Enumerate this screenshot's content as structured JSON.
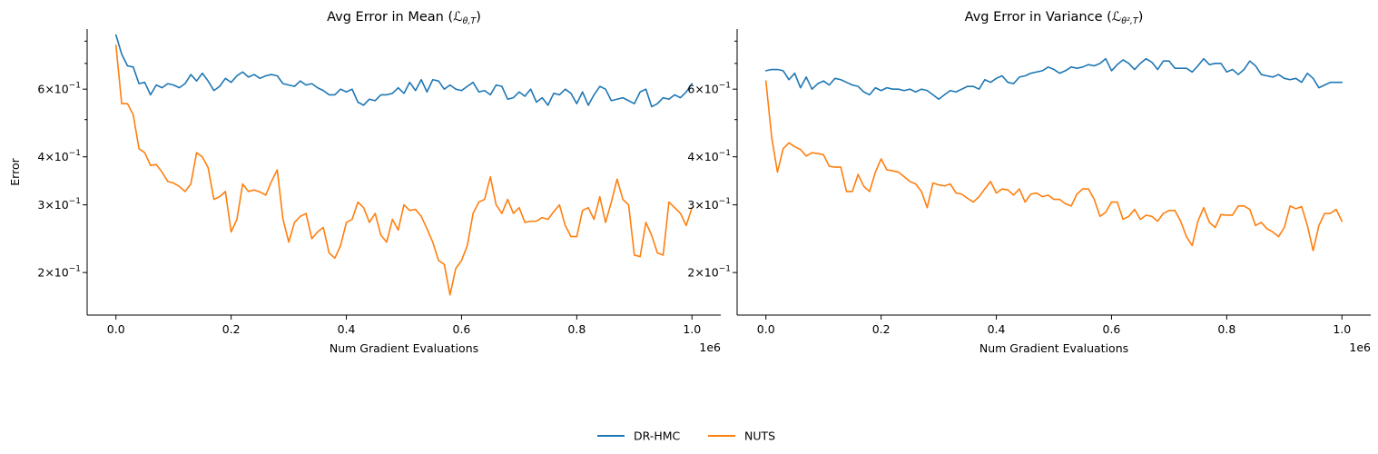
{
  "chart_data": [
    {
      "type": "line",
      "title": "Avg Error in Mean",
      "title_math": {
        "base": "ℒ",
        "sub": "θ,T"
      },
      "xlabel": "Num Gradient Evaluations",
      "ylabel": "Error",
      "x_offset_label": "1e6",
      "xlim": [
        -0.05,
        1.05
      ],
      "ylim": [
        0.155,
        0.86
      ],
      "yscale": "log",
      "xticks": [
        0.0,
        0.2,
        0.4,
        0.6,
        0.8,
        1.0
      ],
      "xtick_labels": [
        "0.0",
        "0.2",
        "0.4",
        "0.6",
        "0.8",
        "1.0"
      ],
      "yticks_major": [
        {
          "value": 0.2,
          "mant": "2",
          "exp": "−1"
        },
        {
          "value": 0.3,
          "mant": "3",
          "exp": "−1"
        },
        {
          "value": 0.4,
          "mant": "4",
          "exp": "−1"
        },
        {
          "value": 0.6,
          "mant": "6",
          "exp": "−1"
        }
      ],
      "yticks_minor": [
        0.5,
        0.7,
        0.8
      ],
      "series": [
        {
          "name": "DR-HMC",
          "color": "#1f77b4",
          "y": [
            0.83,
            0.74,
            0.69,
            0.685,
            0.62,
            0.625,
            0.58,
            0.615,
            0.605,
            0.62,
            0.615,
            0.605,
            0.62,
            0.655,
            0.63,
            0.66,
            0.63,
            0.595,
            0.61,
            0.64,
            0.625,
            0.65,
            0.665,
            0.645,
            0.655,
            0.64,
            0.65,
            0.655,
            0.65,
            0.62,
            0.615,
            0.61,
            0.63,
            0.615,
            0.62,
            0.605,
            0.595,
            0.58,
            0.58,
            0.6,
            0.59,
            0.6,
            0.555,
            0.545,
            0.565,
            0.56,
            0.58,
            0.58,
            0.585,
            0.605,
            0.585,
            0.625,
            0.595,
            0.635,
            0.59,
            0.635,
            0.63,
            0.6,
            0.615,
            0.6,
            0.595,
            0.61,
            0.625,
            0.59,
            0.595,
            0.58,
            0.615,
            0.61,
            0.565,
            0.57,
            0.59,
            0.575,
            0.6,
            0.555,
            0.57,
            0.545,
            0.585,
            0.58,
            0.6,
            0.585,
            0.55,
            0.59,
            0.545,
            0.58,
            0.61,
            0.6,
            0.56,
            0.565,
            0.57,
            0.56,
            0.55,
            0.59,
            0.6,
            0.54,
            0.55,
            0.57,
            0.565,
            0.58,
            0.57,
            0.59,
            0.62
          ]
        },
        {
          "name": "NUTS",
          "color": "#ff7f0e",
          "y": [
            0.78,
            0.55,
            0.55,
            0.515,
            0.42,
            0.41,
            0.38,
            0.382,
            0.365,
            0.345,
            0.342,
            0.335,
            0.325,
            0.34,
            0.41,
            0.4,
            0.375,
            0.31,
            0.315,
            0.325,
            0.255,
            0.275,
            0.34,
            0.325,
            0.328,
            0.324,
            0.318,
            0.345,
            0.37,
            0.275,
            0.24,
            0.27,
            0.28,
            0.285,
            0.245,
            0.255,
            0.262,
            0.225,
            0.218,
            0.235,
            0.27,
            0.275,
            0.305,
            0.295,
            0.27,
            0.285,
            0.25,
            0.24,
            0.275,
            0.258,
            0.3,
            0.29,
            0.292,
            0.28,
            0.26,
            0.24,
            0.215,
            0.21,
            0.175,
            0.205,
            0.215,
            0.235,
            0.285,
            0.305,
            0.31,
            0.355,
            0.3,
            0.285,
            0.31,
            0.285,
            0.295,
            0.27,
            0.272,
            0.272,
            0.278,
            0.275,
            0.288,
            0.3,
            0.265,
            0.248,
            0.248,
            0.29,
            0.295,
            0.275,
            0.315,
            0.27,
            0.305,
            0.35,
            0.31,
            0.3,
            0.222,
            0.22,
            0.27,
            0.25,
            0.225,
            0.222,
            0.305,
            0.295,
            0.285,
            0.265,
            0.295
          ]
        }
      ]
    },
    {
      "type": "line",
      "title": "Avg Error in Variance",
      "title_math": {
        "base": "ℒ",
        "sub": "θ²,T"
      },
      "xlabel": "Num Gradient Evaluations",
      "ylabel": "",
      "x_offset_label": "1e6",
      "xlim": [
        -0.05,
        1.05
      ],
      "ylim": [
        0.155,
        0.86
      ],
      "yscale": "log",
      "xticks": [
        0.0,
        0.2,
        0.4,
        0.6,
        0.8,
        1.0
      ],
      "xtick_labels": [
        "0.0",
        "0.2",
        "0.4",
        "0.6",
        "0.8",
        "1.0"
      ],
      "yticks_major": [
        {
          "value": 0.2,
          "mant": "2",
          "exp": "−1"
        },
        {
          "value": 0.3,
          "mant": "3",
          "exp": "−1"
        },
        {
          "value": 0.4,
          "mant": "4",
          "exp": "−1"
        },
        {
          "value": 0.6,
          "mant": "6",
          "exp": "−1"
        }
      ],
      "yticks_minor": [
        0.5,
        0.7,
        0.8
      ],
      "series": [
        {
          "name": "DR-HMC",
          "color": "#1f77b4",
          "y": [
            0.67,
            0.675,
            0.675,
            0.67,
            0.635,
            0.66,
            0.605,
            0.645,
            0.6,
            0.62,
            0.63,
            0.615,
            0.64,
            0.635,
            0.625,
            0.615,
            0.61,
            0.59,
            0.58,
            0.605,
            0.595,
            0.605,
            0.6,
            0.6,
            0.595,
            0.6,
            0.59,
            0.6,
            0.595,
            0.58,
            0.565,
            0.58,
            0.595,
            0.59,
            0.6,
            0.61,
            0.61,
            0.6,
            0.635,
            0.625,
            0.64,
            0.65,
            0.625,
            0.62,
            0.645,
            0.65,
            0.66,
            0.665,
            0.67,
            0.685,
            0.675,
            0.66,
            0.67,
            0.685,
            0.68,
            0.685,
            0.695,
            0.69,
            0.7,
            0.72,
            0.67,
            0.695,
            0.715,
            0.7,
            0.675,
            0.7,
            0.72,
            0.705,
            0.675,
            0.71,
            0.71,
            0.68,
            0.68,
            0.68,
            0.665,
            0.69,
            0.72,
            0.695,
            0.7,
            0.7,
            0.665,
            0.675,
            0.655,
            0.675,
            0.71,
            0.69,
            0.655,
            0.65,
            0.645,
            0.655,
            0.64,
            0.635,
            0.64,
            0.625,
            0.66,
            0.64,
            0.605,
            0.615,
            0.625,
            0.625,
            0.625
          ]
        },
        {
          "name": "NUTS",
          "color": "#ff7f0e",
          "y": [
            0.63,
            0.45,
            0.365,
            0.42,
            0.435,
            0.425,
            0.418,
            0.402,
            0.41,
            0.408,
            0.405,
            0.378,
            0.376,
            0.376,
            0.325,
            0.325,
            0.36,
            0.335,
            0.325,
            0.365,
            0.395,
            0.37,
            0.368,
            0.365,
            0.355,
            0.345,
            0.34,
            0.325,
            0.295,
            0.342,
            0.338,
            0.336,
            0.34,
            0.322,
            0.32,
            0.312,
            0.305,
            0.315,
            0.33,
            0.345,
            0.322,
            0.33,
            0.328,
            0.318,
            0.33,
            0.305,
            0.32,
            0.322,
            0.315,
            0.318,
            0.31,
            0.31,
            0.302,
            0.298,
            0.32,
            0.33,
            0.33,
            0.31,
            0.28,
            0.287,
            0.305,
            0.305,
            0.275,
            0.28,
            0.292,
            0.275,
            0.282,
            0.28,
            0.272,
            0.285,
            0.29,
            0.29,
            0.272,
            0.248,
            0.235,
            0.272,
            0.295,
            0.27,
            0.262,
            0.283,
            0.282,
            0.282,
            0.298,
            0.298,
            0.292,
            0.265,
            0.27,
            0.26,
            0.255,
            0.248,
            0.262,
            0.298,
            0.293,
            0.297,
            0.265,
            0.228,
            0.265,
            0.285,
            0.285,
            0.292,
            0.272
          ]
        }
      ]
    }
  ],
  "legend": {
    "position": "bottom-center",
    "items": [
      {
        "label": "DR-HMC",
        "color": "#1f77b4"
      },
      {
        "label": "NUTS",
        "color": "#ff7f0e"
      }
    ]
  }
}
